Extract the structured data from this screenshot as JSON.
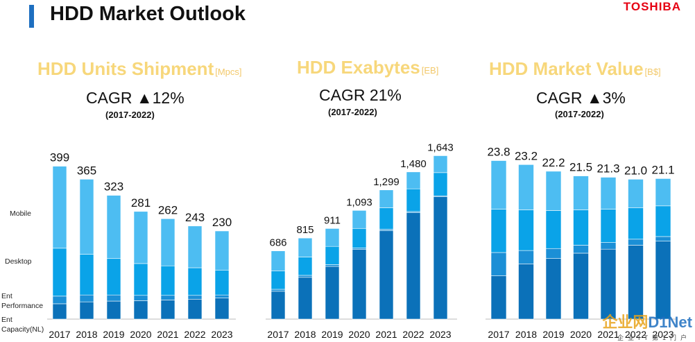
{
  "header": {
    "title": "HDD Market Outlook",
    "brand": "TOSHIBA"
  },
  "legend": {
    "mobile": "Mobile",
    "desktop": "Desktop",
    "ent_performance": "Ent Performance",
    "ent_capacity": "Ent Capacity(NL)"
  },
  "watermark": {
    "prefix": "企业网",
    "suffix": "D1Net",
    "sub": "企业IT第1门户"
  },
  "colors": {
    "mobile": "#4dbdf2",
    "desktop": "#0aa3e8",
    "ent_performance": "#1b8fd6",
    "ent_capacity": "#0b71b9"
  },
  "chart_data": [
    {
      "type": "bar",
      "stacked": true,
      "title": "HDD Units Shipment",
      "unit": "[Mpcs]",
      "cagr": "CAGR ▲12%",
      "period": "(2017-2022)",
      "categories": [
        "2017",
        "2018",
        "2019",
        "2020",
        "2021",
        "2022",
        "2023"
      ],
      "totals": [
        399,
        365,
        323,
        281,
        262,
        243,
        230
      ],
      "total_labels": [
        "399",
        "365",
        "323",
        "281",
        "262",
        "243",
        "230"
      ],
      "ylim": [
        0,
        420
      ],
      "series": [
        {
          "key": "ent_capacity",
          "values": [
            40,
            45,
            47,
            48,
            50,
            52,
            55
          ]
        },
        {
          "key": "ent_performance",
          "values": [
            20,
            18,
            16,
            14,
            12,
            10,
            8
          ]
        },
        {
          "key": "desktop",
          "values": [
            125,
            106,
            95,
            83,
            77,
            72,
            65
          ]
        },
        {
          "key": "mobile",
          "values": [
            214,
            196,
            165,
            136,
            123,
            109,
            102
          ]
        }
      ]
    },
    {
      "type": "bar",
      "stacked": true,
      "title": "HDD Exabytes",
      "unit": "[EB]",
      "cagr": "CAGR 21%",
      "period": "(2017-2022)",
      "categories": [
        "2017",
        "2018",
        "2019",
        "2020",
        "2021",
        "2022",
        "2023"
      ],
      "totals": [
        686,
        815,
        911,
        1093,
        1299,
        1480,
        1643
      ],
      "total_labels": [
        "686",
        "815",
        "911",
        "1,093",
        "1,299",
        "1,480",
        "1,643"
      ],
      "ylim": [
        0,
        1730
      ],
      "series": [
        {
          "key": "ent_capacity",
          "values": [
            280,
            420,
            530,
            700,
            890,
            1070,
            1230
          ]
        },
        {
          "key": "ent_performance",
          "values": [
            20,
            20,
            18,
            15,
            14,
            12,
            10
          ]
        },
        {
          "key": "desktop",
          "values": [
            186,
            185,
            183,
            197,
            215,
            228,
            233
          ]
        },
        {
          "key": "mobile",
          "values": [
            200,
            190,
            180,
            181,
            180,
            170,
            170
          ]
        }
      ]
    },
    {
      "type": "bar",
      "stacked": true,
      "title": "HDD Market Value",
      "unit": "[B$]",
      "cagr": "CAGR ▲3%",
      "period": "(2017-2022)",
      "categories": [
        "2017",
        "2018",
        "2019",
        "2020",
        "2021",
        "2022",
        "2023"
      ],
      "totals": [
        23.8,
        23.2,
        22.2,
        21.5,
        21.3,
        21.0,
        21.1
      ],
      "total_labels": [
        "23.8",
        "23.2",
        "22.2",
        "21.5",
        "21.3",
        "21.0",
        "21.1"
      ],
      "ylim": [
        0,
        25
      ],
      "series": [
        {
          "key": "ent_capacity",
          "values": [
            6.5,
            8.3,
            9.1,
            9.9,
            10.5,
            11.1,
            11.7
          ]
        },
        {
          "key": "ent_performance",
          "values": [
            3.5,
            2.0,
            1.5,
            1.2,
            1.0,
            0.9,
            0.7
          ]
        },
        {
          "key": "desktop",
          "values": [
            6.5,
            6.1,
            5.7,
            5.3,
            5.0,
            4.7,
            4.6
          ]
        },
        {
          "key": "mobile",
          "values": [
            7.3,
            6.8,
            5.9,
            5.1,
            4.8,
            4.3,
            4.1
          ]
        }
      ]
    }
  ]
}
